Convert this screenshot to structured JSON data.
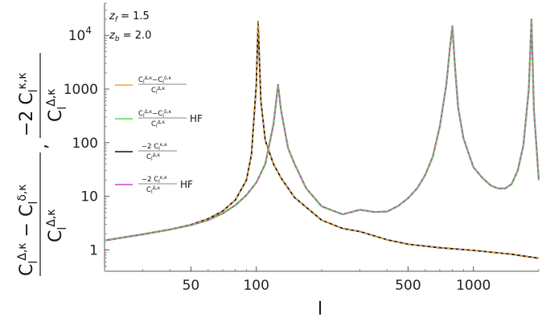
{
  "chart_data": {
    "type": "line",
    "xscale": "log",
    "yscale": "log",
    "xlim": [
      20,
      2000
    ],
    "ylim": [
      0.4,
      40000
    ],
    "xlabel": "l",
    "ylabel": {
      "first_numerator": "C_l^{Δ,κ} − C_l^{δ,κ}",
      "first_denominator": "C_l^{Δ,κ}",
      "separator": ",",
      "second_numerator": "−2 C_l^{κ,κ}",
      "second_denominator": "C_l^{Δ,κ}"
    },
    "x_ticks": [
      {
        "value": 50,
        "label": "50"
      },
      {
        "value": 100,
        "label": "100"
      },
      {
        "value": 500,
        "label": "500"
      },
      {
        "value": 1000,
        "label": "1000"
      }
    ],
    "y_ticks": [
      {
        "value": 1,
        "label": "1"
      },
      {
        "value": 10,
        "label": "10"
      },
      {
        "value": 100,
        "label": "100"
      },
      {
        "value": 1000,
        "label": "1000"
      },
      {
        "value": 10000,
        "label": "10",
        "exponent": "4"
      }
    ],
    "annotations": [
      {
        "var": "z",
        "sub": "f",
        "eq": " = 1.5"
      },
      {
        "var": "z",
        "sub": "b",
        "eq": " = 2.0"
      }
    ],
    "legend_placement": "left",
    "series": [
      {
        "legend_numerator": "C_l^{Δ,κ}−C_l^{δ,κ}",
        "legend_denominator": "C_l^{Δ,κ}",
        "legend_suffix": "",
        "color": "#f5a030",
        "dash": "solid",
        "x": [
          20,
          30,
          40,
          50,
          60,
          70,
          80,
          90,
          100,
          110,
          120,
          126,
          130,
          140,
          150,
          170,
          200,
          250,
          300,
          350,
          400,
          450,
          500,
          550,
          600,
          650,
          700,
          750,
          780,
          800,
          820,
          850,
          900,
          1000,
          1100,
          1200,
          1300,
          1400,
          1500,
          1600,
          1700,
          1800,
          1850,
          1900,
          2000
        ],
        "y": [
          1.5,
          1.95,
          2.4,
          2.9,
          3.6,
          4.8,
          6.8,
          10.5,
          18,
          40,
          220,
          1200,
          400,
          80,
          40,
          14,
          6.5,
          4.6,
          5.6,
          5.1,
          5.2,
          6.6,
          9.2,
          14,
          25,
          55,
          200,
          1200,
          6000,
          15000,
          3000,
          450,
          120,
          35,
          22,
          16,
          14,
          14,
          17,
          30,
          90,
          1000,
          20000,
          400,
          20
        ]
      },
      {
        "legend_numerator": "C_l^{Δ,κ}−C_l^{δ,κ}",
        "legend_denominator": "C_l^{Δ,κ}",
        "legend_suffix": "HF",
        "color": "#5ad85a",
        "dash": "solid",
        "x": [
          20,
          30,
          40,
          50,
          60,
          70,
          80,
          90,
          100,
          110,
          120,
          126,
          130,
          140,
          150,
          170,
          200,
          250,
          300,
          350,
          400,
          450,
          500,
          550,
          600,
          650,
          700,
          750,
          780,
          800,
          820,
          850,
          900,
          1000,
          1100,
          1200,
          1300,
          1400,
          1500,
          1600,
          1700,
          1800,
          1850,
          1900,
          2000
        ],
        "y": [
          1.5,
          1.95,
          2.4,
          2.9,
          3.6,
          4.8,
          6.8,
          10.5,
          18,
          40,
          220,
          1200,
          400,
          80,
          40,
          14,
          6.5,
          4.6,
          5.6,
          5.1,
          5.2,
          6.6,
          9.2,
          14,
          25,
          55,
          200,
          1200,
          6000,
          15000,
          3000,
          450,
          120,
          35,
          22,
          16,
          14,
          14,
          17,
          30,
          90,
          1000,
          20000,
          400,
          20
        ]
      },
      {
        "legend_numerator": "−2 C_l^{κ,κ}",
        "legend_denominator": "C_l^{Δ,κ}",
        "legend_suffix": "",
        "color": "#111111",
        "dash": "solid",
        "x": [
          20,
          30,
          40,
          50,
          60,
          70,
          80,
          90,
          95,
          100,
          102,
          105,
          110,
          120,
          130,
          150,
          200,
          250,
          300,
          400,
          500,
          700,
          1000,
          1500,
          2000
        ],
        "y": [
          1.5,
          1.95,
          2.4,
          2.95,
          3.8,
          5.3,
          8.5,
          20,
          60,
          1200,
          18000,
          600,
          110,
          40,
          22,
          9.5,
          3.6,
          2.5,
          2.2,
          1.55,
          1.28,
          1.1,
          0.98,
          0.83,
          0.7
        ]
      },
      {
        "legend_numerator": "−2 C_l^{κ,κ}",
        "legend_denominator": "C_l^{Δ,κ}",
        "legend_suffix": "HF",
        "color": "#cc44cc",
        "dash": "solid",
        "x": [
          20,
          30,
          40,
          50,
          60,
          70,
          80,
          90,
          100,
          110,
          120,
          126,
          130,
          140,
          150,
          170,
          200,
          250,
          300,
          350,
          400,
          450,
          500,
          550,
          600,
          650,
          700,
          750,
          780,
          800,
          820,
          850,
          900,
          1000,
          1100,
          1200,
          1300,
          1400,
          1500,
          1600,
          1700,
          1800,
          1850,
          1900,
          2000
        ],
        "y": [
          1.5,
          1.95,
          2.4,
          2.9,
          3.6,
          4.8,
          6.8,
          10.5,
          18,
          40,
          220,
          1200,
          400,
          80,
          40,
          14,
          6.5,
          4.6,
          5.6,
          5.1,
          5.2,
          6.6,
          9.2,
          14,
          25,
          55,
          200,
          1200,
          6000,
          15000,
          3000,
          450,
          120,
          35,
          22,
          16,
          14,
          14,
          17,
          30,
          90,
          1000,
          20000,
          400,
          20
        ]
      }
    ],
    "overlays": [
      {
        "of_series": 2,
        "color": "#f5a030",
        "dash": "dashed"
      },
      {
        "of_series": 3,
        "color": "#5ad85a",
        "dash": "dashed"
      }
    ],
    "grid": false
  }
}
